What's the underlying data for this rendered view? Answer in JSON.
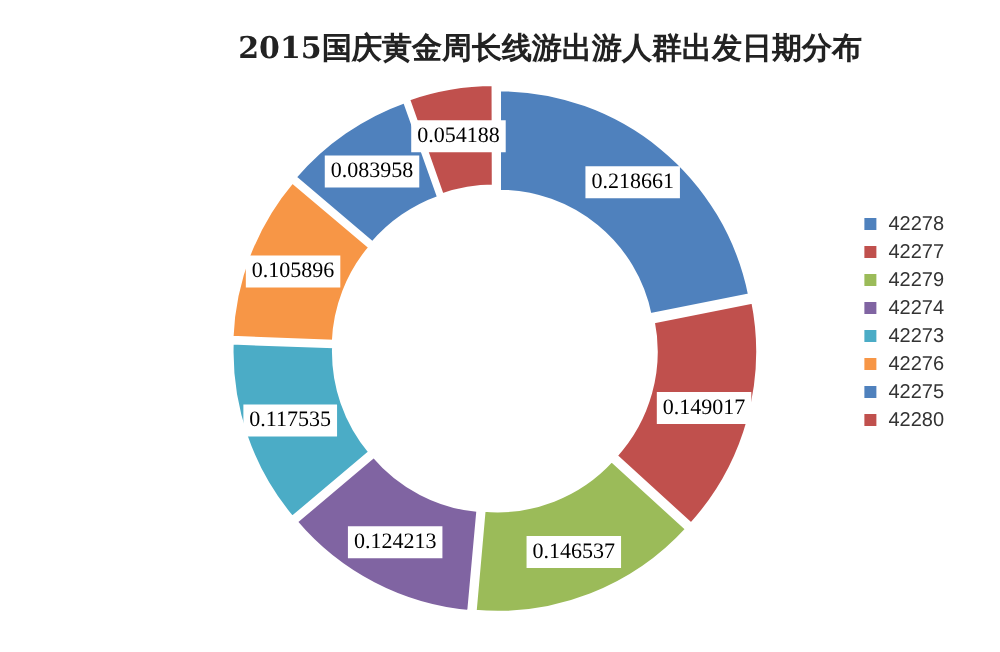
{
  "chart_data": {
    "type": "donut",
    "title": "2015国庆黄金周长线游出游人群出发日期分布",
    "categories": [
      "42278",
      "42277",
      "42279",
      "42274",
      "42273",
      "42276",
      "42275",
      "42280"
    ],
    "values": [
      0.218661,
      0.149017,
      0.146537,
      0.124213,
      0.117535,
      0.105896,
      0.083958,
      0.054188
    ],
    "colors": [
      "#4f81bd",
      "#c0504d",
      "#9bbb59",
      "#8064a2",
      "#4bacc6",
      "#f79646",
      "#4f81bd",
      "#c0504d"
    ],
    "data_labels": true,
    "legend": "right"
  }
}
